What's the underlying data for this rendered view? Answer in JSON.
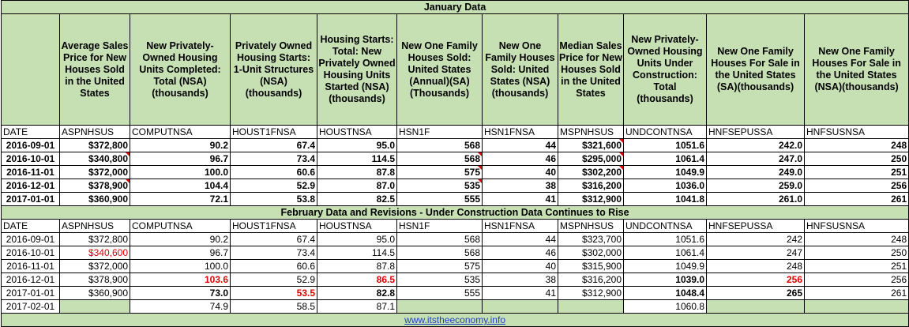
{
  "jan_title": "January Data",
  "feb_title": "February Data and Revisions - Under Construction Data Continues to Rise",
  "headers": [
    "",
    "Average Sales Price for New Houses Sold in the United States",
    "New Privately-Owned Housing Units Completed: Total (NSA)(thousands)",
    "Privately Owned Housing Starts: 1-Unit Structures (NSA) (thousands)",
    "Housing Starts: Total: New Privately Owned Housing Units Started (NSA) (thousands)",
    "New One Family Houses Sold: United States (Annual)(SA) (Thousands)",
    "New One Family Houses Sold: United States (NSA) (thousands)",
    "Median Sales Price for New Houses Sold in the United States",
    "New Privately-Owned Housing Units Under Construction: Total (thousands)",
    "New One Family Houses For Sale in the United States (SA)(thousands)",
    "New One Family Houses For Sale in the United States (NSA)(thousands)"
  ],
  "codes": [
    "DATE",
    "ASPNHSUS",
    "COMPUTNSA",
    "HOUST1FNSA",
    "HOUSTNSA",
    "HSN1F",
    "HSN1FNSA",
    "MSPNHSUS",
    "UNDCONTNSA",
    "HNFSEPUSSA",
    "HNFSUSNSA"
  ],
  "jan_rows": [
    [
      "2016-09-01",
      "$372,800",
      "90.2",
      "67.4",
      "95.0",
      "568",
      "44",
      "$321,600",
      "1051.6",
      "242.0",
      "248"
    ],
    [
      "2016-10-01",
      "$340,800",
      "96.7",
      "73.4",
      "114.5",
      "568",
      "46",
      "$295,000",
      "1061.4",
      "247.0",
      "250"
    ],
    [
      "2016-11-01",
      "$372,000",
      "100.0",
      "60.6",
      "87.8",
      "575",
      "40",
      "$302,200",
      "1049.9",
      "249.0",
      "251"
    ],
    [
      "2016-12-01",
      "$378,900",
      "104.4",
      "52.9",
      "87.0",
      "535",
      "38",
      "$316,200",
      "1036.0",
      "259.0",
      "256"
    ],
    [
      "2017-01-01",
      "$360,900",
      "72.1",
      "53.8",
      "82.5",
      "555",
      "41",
      "$312,900",
      "1041.8",
      "261.0",
      "261"
    ]
  ],
  "feb_rows": [
    [
      "2016-09-01",
      "$372,800",
      "90.2",
      "67.4",
      "95.0",
      "568",
      "44",
      "$323,700",
      "1051.6",
      "242",
      "248"
    ],
    [
      "2016-10-01",
      "$340,600",
      "96.7",
      "73.4",
      "114.5",
      "568",
      "46",
      "$302,000",
      "1061.4",
      "247",
      "250"
    ],
    [
      "2016-11-01",
      "$372,000",
      "100.0",
      "60.6",
      "87.8",
      "575",
      "40",
      "$315,900",
      "1049.9",
      "248",
      "251"
    ],
    [
      "2016-12-01",
      "$378,900",
      "103.6",
      "52.9",
      "86.5",
      "535",
      "38",
      "$316,200",
      "1039.0",
      "256",
      "256"
    ],
    [
      "2017-01-01",
      "$360,900",
      "73.0",
      "53.5",
      "82.8",
      "555",
      "41",
      "$312,900",
      "1048.4",
      "265",
      "261"
    ],
    [
      "2017-02-01",
      "",
      "74.9",
      "58.5",
      "87.1",
      "",
      "",
      "",
      "1060.8",
      "",
      ""
    ]
  ],
  "highlight_colors": {
    "band": "#c6e0b4",
    "revision_red": "#e00000",
    "link_blue": "#1f3fbf"
  },
  "footer_link": "www.itstheeconomy.info"
}
